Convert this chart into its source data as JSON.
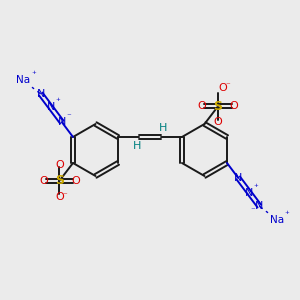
{
  "bg_color": "#ebebeb",
  "bond_color": "#1a1a1a",
  "azide_color": "#0000cc",
  "S_color": "#ccaa00",
  "O_color": "#dd0000",
  "H_color": "#008080",
  "Na_color": "#0000cc",
  "figsize": [
    3.0,
    3.0
  ],
  "dpi": 100,
  "xlim": [
    0,
    12
  ],
  "ylim": [
    0,
    12
  ]
}
